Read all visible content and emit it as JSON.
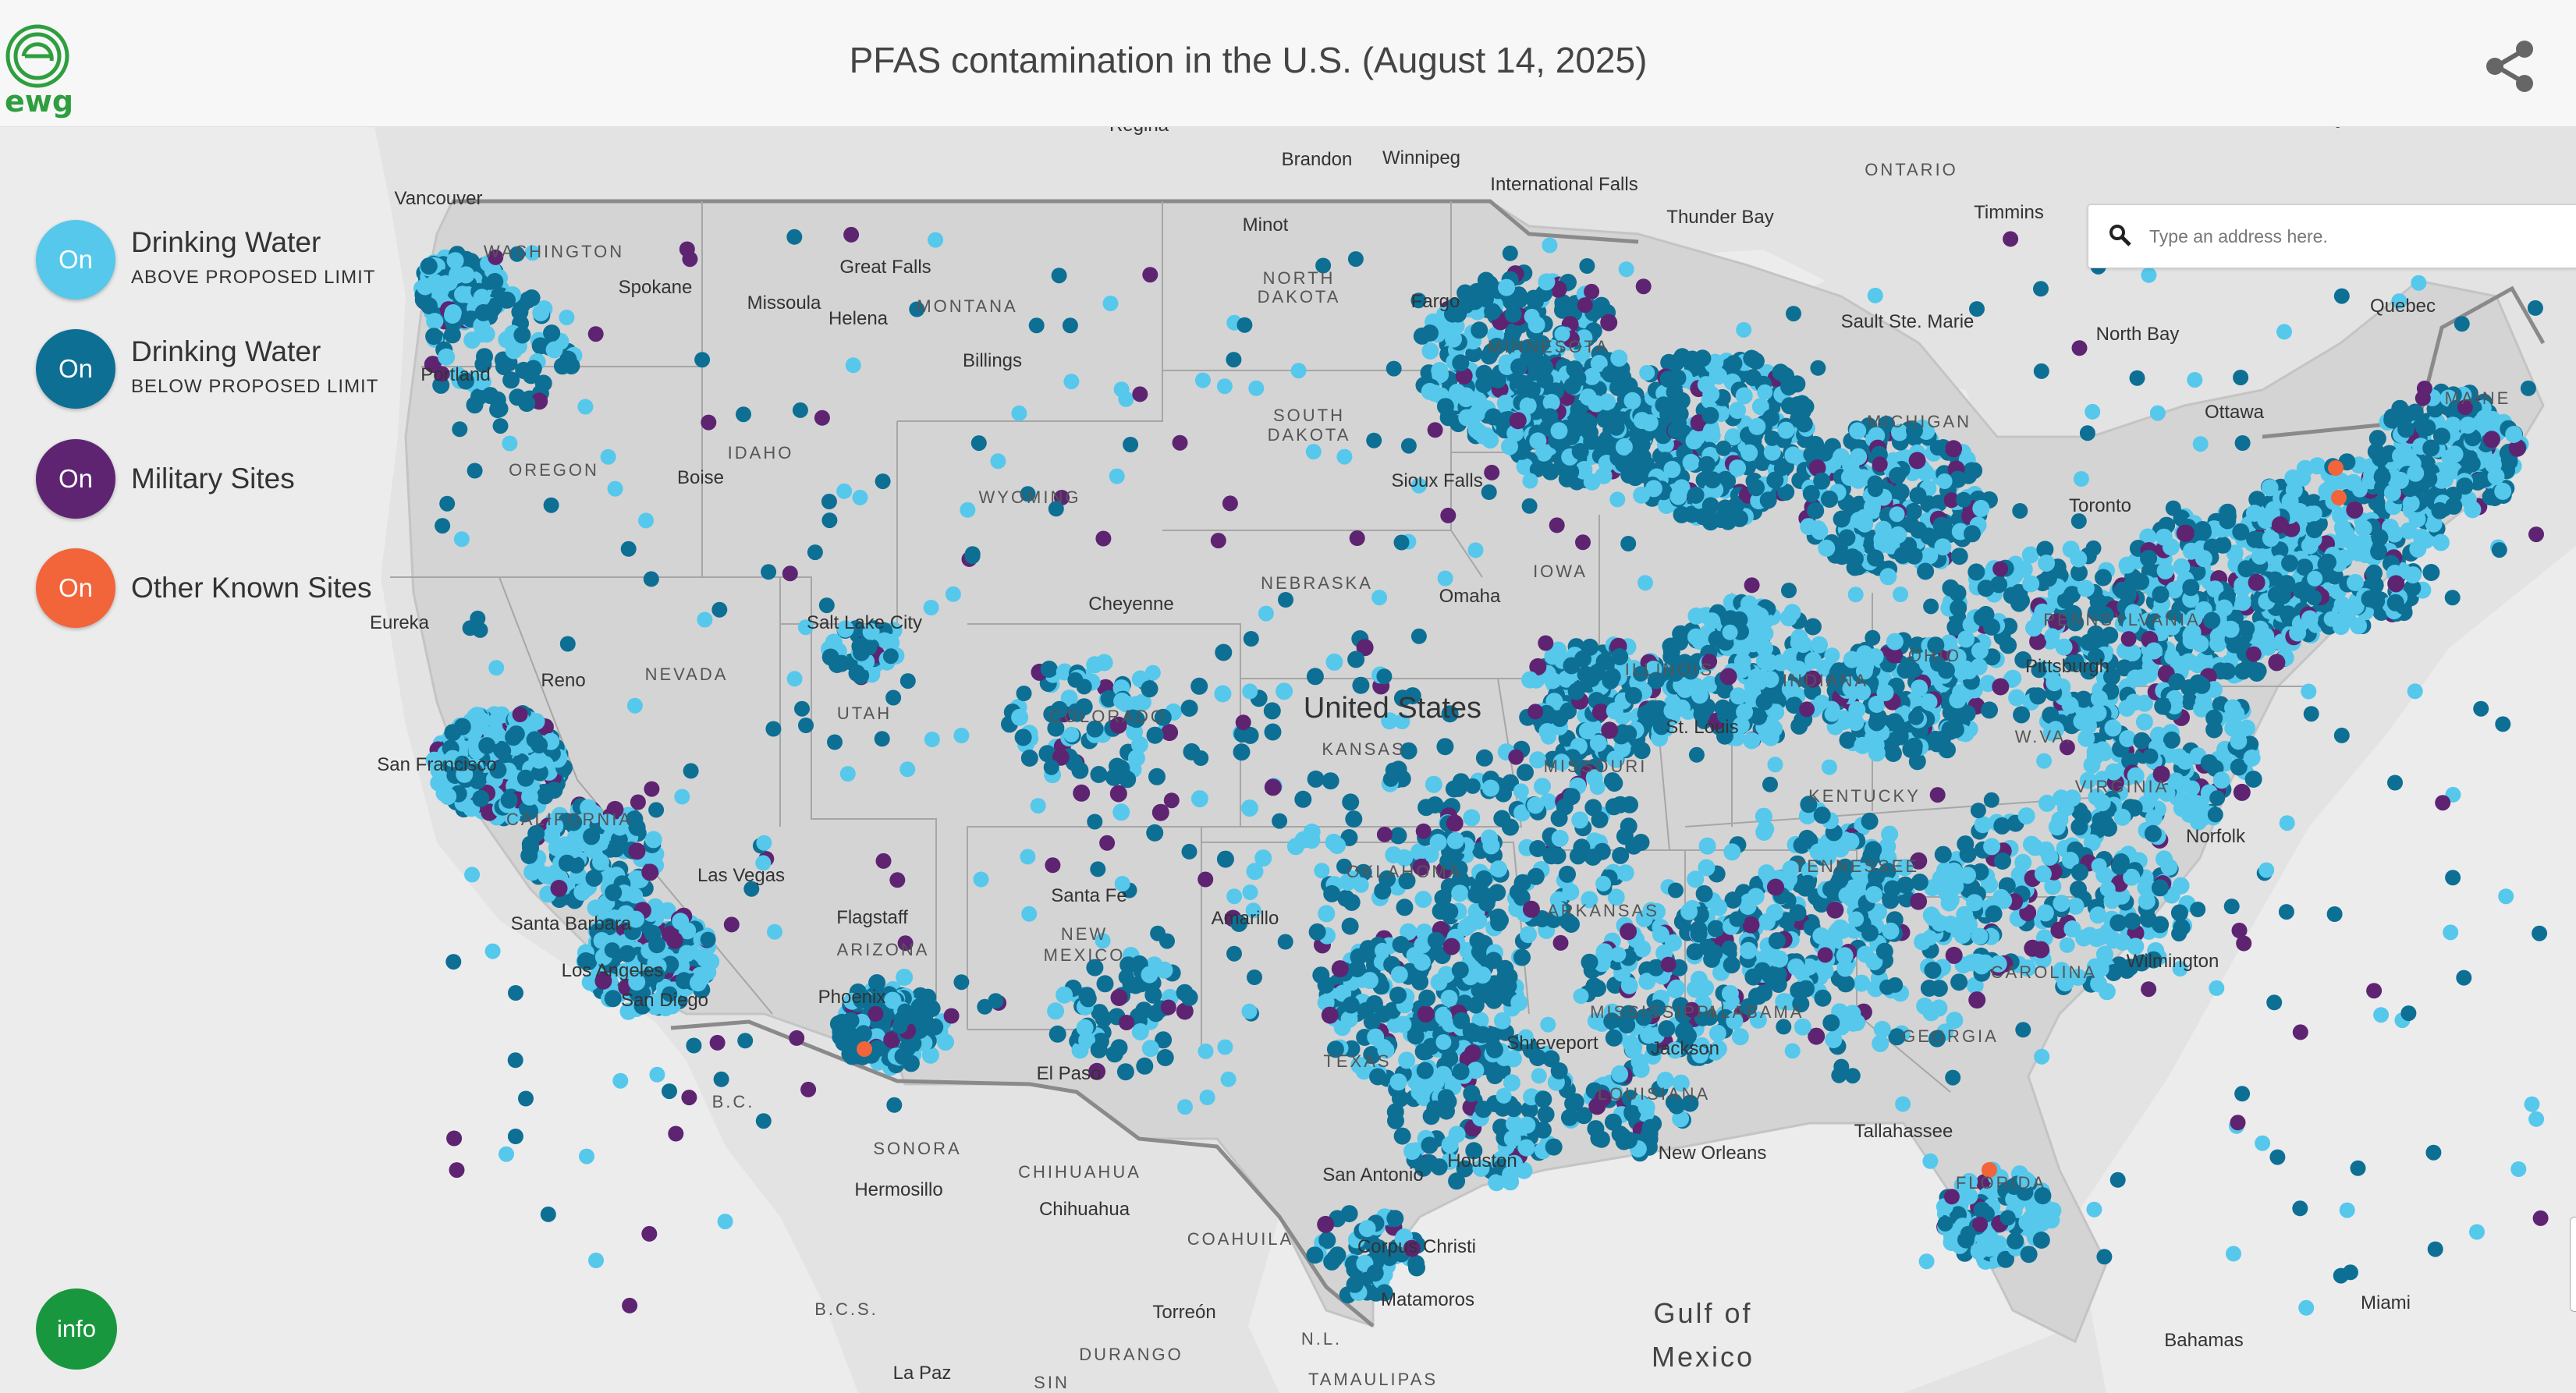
{
  "header": {
    "logo_text": "ewg",
    "title": "PFAS contamination in the U.S. (August 14, 2025)",
    "share_icon": "share-icon"
  },
  "search": {
    "placeholder": "Type an address here.",
    "icon": "search-icon"
  },
  "legend": [
    {
      "toggle": "On",
      "label": "Drinking Water",
      "sublabel": "ABOVE PROPOSED LIMIT",
      "color": "#55c8ec"
    },
    {
      "toggle": "On",
      "label": "Drinking Water",
      "sublabel": "BELOW PROPOSED LIMIT",
      "color": "#0d6f94"
    },
    {
      "toggle": "On",
      "label": "Military Sites",
      "sublabel": "",
      "color": "#5e2472"
    },
    {
      "toggle": "On",
      "label": "Other Known Sites",
      "sublabel": "",
      "color": "#f2643a"
    }
  ],
  "info_button": "info",
  "map": {
    "country_label": "United States",
    "water_labels": [
      "Gulf of",
      "Mexico"
    ],
    "state_labels": [
      "WASHINGTON",
      "MONTANA",
      "NORTH",
      "DAKOTA",
      "SOUTH",
      "DAKOTA",
      "OREGON",
      "IDAHO",
      "WYOMING",
      "NEBRASKA",
      "NEVADA",
      "UTAH",
      "COLORADO",
      "KANSAS",
      "CALIFORNIA",
      "IOWA",
      "ILLINOIS",
      "INDIANA",
      "OHIO",
      "MISSOURI",
      "KENTUCKY",
      "OKLAHOMA",
      "ARKANSAS",
      "NEW",
      "MEXICO",
      "ARIZONA",
      "TEXAS",
      "MISSISSIPPI",
      "ALABAMA",
      "GEORGIA",
      "LOUISIANA",
      "VIRGINIA",
      "W.VA.",
      "PENNSYLVANIA",
      "TENNESSEE",
      "CAROLINA",
      "FLORIDA",
      "MAINE",
      "MICHIGAN",
      "MINNESOTA",
      "ONTARIO",
      "SONORA",
      "CHIHUAHUA",
      "COAHUILA",
      "DURANGO",
      "TAMAULIPAS",
      "B.C.",
      "B.C.S.",
      "N.L.",
      "QUEBEC",
      "SIN"
    ],
    "city_labels": [
      "Regina",
      "Brandon",
      "Winnipeg",
      "International Falls",
      "Thunder Bay",
      "Timmins",
      "Vancouver",
      "Spokane",
      "Great Falls",
      "Missoula",
      "Helena",
      "Billings",
      "Minot",
      "Fargo",
      "Portland",
      "Boise",
      "Sioux Falls",
      "Sault Ste. Marie",
      "North Bay",
      "Quebec",
      "Ottawa",
      "Toronto",
      "Eureka",
      "Reno",
      "Salt Lake City",
      "Cheyenne",
      "Omaha",
      "Pittsburgh",
      "San Francisco",
      "Las Vegas",
      "St. Louis",
      "Norfolk",
      "Santa Fe",
      "Amarillo",
      "Flagstaff",
      "Santa Barbara",
      "Los Angeles",
      "San Diego",
      "Phoenix",
      "El Paso",
      "Shreveport",
      "Jackson",
      "Wilmington",
      "New Orleans",
      "Tallahassee",
      "San Antonio",
      "Houston",
      "Hermosillo",
      "Chihuahua",
      "Corpus Christi",
      "Torreón",
      "Matamoros",
      "Miami",
      "Bahamas",
      "La Paz"
    ]
  }
}
